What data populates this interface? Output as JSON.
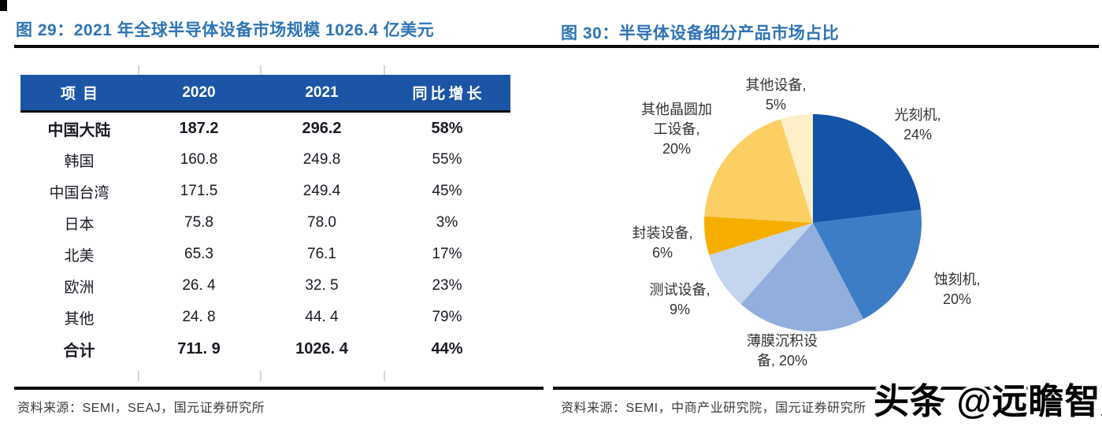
{
  "left_panel": {
    "title": "图 29：2021 年全球半导体设备市场规模 1026.4 亿美元",
    "source": "资料来源：SEMI，SEAJ，国元证券研究所"
  },
  "right_panel": {
    "title": "图 30：半导体设备细分产品市场占比",
    "source": "资料来源：SEMI，中商产业研究院，国元证券研究所"
  },
  "watermark": "头条 @远瞻智库",
  "colors": {
    "title_blue": "#2E74B5",
    "table_header_blue": "#1C55A6",
    "rule_black": "#0a0a0a"
  },
  "chart_data": [
    {
      "type": "table",
      "title": "图 29：2021 年全球半导体设备市场规模 1026.4 亿美元",
      "columns": [
        "项目",
        "2020",
        "2021",
        "同比增长"
      ],
      "rows": [
        {
          "cells": [
            "中国大陆",
            "187.2",
            "296.2",
            "58%"
          ],
          "bold": true
        },
        {
          "cells": [
            "韩国",
            "160.8",
            "249.8",
            "55%"
          ],
          "bold": false
        },
        {
          "cells": [
            "中国台湾",
            "171.5",
            "249.4",
            "45%"
          ],
          "bold": false
        },
        {
          "cells": [
            "日本",
            "75.8",
            "78.0",
            "3%"
          ],
          "bold": false
        },
        {
          "cells": [
            "北美",
            "65.3",
            "76.1",
            "17%"
          ],
          "bold": false
        },
        {
          "cells": [
            "欧洲",
            "26. 4",
            "32. 5",
            "23%"
          ],
          "bold": false
        },
        {
          "cells": [
            "其他",
            "24. 8",
            "44. 4",
            "79%"
          ],
          "bold": false
        },
        {
          "cells": [
            "合计",
            "711. 9",
            "1026. 4",
            "44%"
          ],
          "bold": true
        }
      ]
    },
    {
      "type": "pie",
      "title": "半导体设备细分产品市场占比",
      "legend_position": "none-direct-labels",
      "start_angle": "12-oclock-clockwise",
      "slices": [
        {
          "name": "光刻机",
          "value": 24,
          "color": "#1353A8",
          "label": "光刻机,\n24%"
        },
        {
          "name": "蚀刻机",
          "value": 20,
          "color": "#3C7DC6",
          "label": "蚀刻机,\n20%"
        },
        {
          "name": "薄膜沉积设备",
          "value": 20,
          "color": "#92AEDC",
          "label": "薄膜沉积设\n备, 20%"
        },
        {
          "name": "测试设备",
          "value": 9,
          "color": "#C5D5EE",
          "label": "测试设备,\n9%"
        },
        {
          "name": "封装设备",
          "value": 6,
          "color": "#F6AF00",
          "label": "封装设备,\n6%"
        },
        {
          "name": "其他晶圆加工设备",
          "value": 20,
          "color": "#FBCF63",
          "label": "其他晶圆加\n工设备,\n20%"
        },
        {
          "name": "其他设备",
          "value": 5,
          "color": "#FDF0C8",
          "label": "其他设备,\n5%"
        }
      ]
    }
  ]
}
